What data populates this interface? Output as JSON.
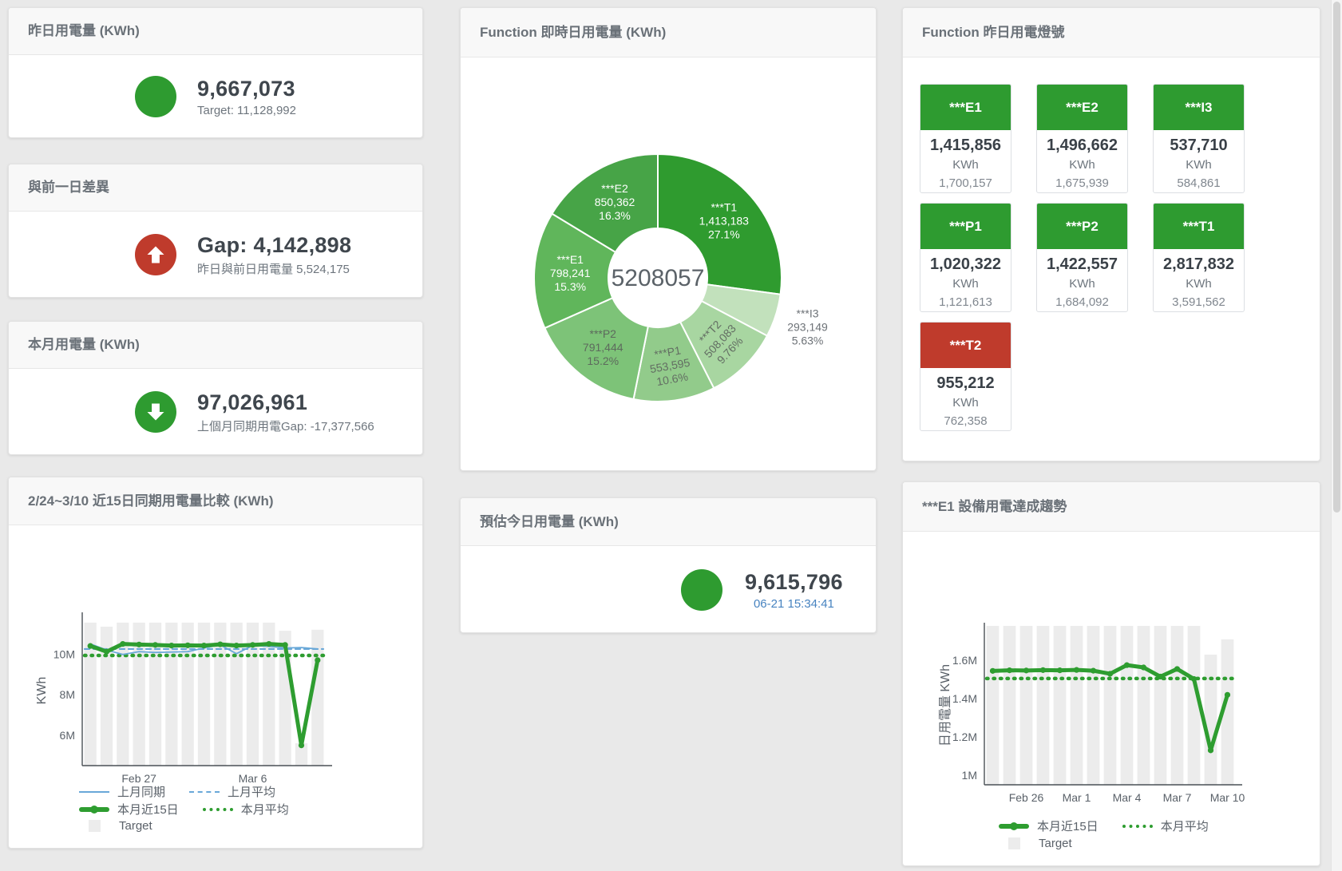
{
  "colors": {
    "green": "#2e9b30",
    "red": "#bf3b2c",
    "blue_line": "#69a8d8",
    "green_line": "#2e9d30",
    "bar_gray": "#ececec",
    "time_text": "#4783c0"
  },
  "cards": {
    "yesterday": {
      "title": "昨日用電量 (KWh)",
      "value": "9,667,073",
      "sub": "Target: 11,128,992"
    },
    "gap": {
      "title": "與前一日差異",
      "value": "Gap: 4,142,898",
      "sub": "昨日與前日用電量 5,524,175"
    },
    "month": {
      "title": "本月用電量 (KWh)",
      "value": "97,026,961",
      "sub": "上個月同期用電Gap: -17,377,566"
    },
    "forecast": {
      "title": "預估今日用電量 (KWh)",
      "value": "9,615,796",
      "timestamp": "06-21 15:34:41"
    },
    "lights": {
      "title": "Function 昨日用電燈號",
      "unit": "KWh",
      "tiles": [
        {
          "label": "***E1",
          "value": "1,415,856",
          "target": "1,700,157",
          "color": "#2e9b30"
        },
        {
          "label": "***E2",
          "value": "1,496,662",
          "target": "1,675,939",
          "color": "#2e9b30"
        },
        {
          "label": "***I3",
          "value": "537,710",
          "target": "584,861",
          "color": "#2e9b30"
        },
        {
          "label": "***P1",
          "value": "1,020,322",
          "target": "1,121,613",
          "color": "#2e9b30"
        },
        {
          "label": "***P2",
          "value": "1,422,557",
          "target": "1,684,092",
          "color": "#2e9b30"
        },
        {
          "label": "***T1",
          "value": "2,817,832",
          "target": "3,591,562",
          "color": "#2e9b30"
        },
        {
          "label": "***T2",
          "value": "955,212",
          "target": "762,358",
          "color": "#bf3b2c"
        }
      ]
    }
  },
  "chart_data": [
    {
      "id": "realtime_donut",
      "type": "pie",
      "title": "Function 即時日用電量 (KWh)",
      "center_label": "5208057",
      "slices": [
        {
          "name": "***T1",
          "value": 1413183,
          "value_label": "1,413,183",
          "pct_label": "27.1%",
          "color": "#2f9b2f",
          "label_pos": "inside",
          "label_color": "#ffffff"
        },
        {
          "name": "***I3",
          "value": 293149,
          "value_label": "293,149",
          "pct_label": "5.63%",
          "color": "#c2e1bc",
          "label_pos": "outside",
          "label_color": "#6d7277"
        },
        {
          "name": "***T2",
          "value": 508083,
          "value_label": "508,083",
          "pct_label": "9.76%",
          "color": "#a8d6a1",
          "label_pos": "inside",
          "label_color": "#636e63",
          "label_rotate": -47
        },
        {
          "name": "***P1",
          "value": 553595,
          "value_label": "553,595",
          "pct_label": "10.6%",
          "color": "#92cb8b",
          "label_pos": "inside",
          "label_color": "#636e63",
          "label_rotate": -10
        },
        {
          "name": "***P2",
          "value": 791444,
          "value_label": "791,444",
          "pct_label": "15.2%",
          "color": "#7dc378",
          "label_pos": "inside",
          "label_color": "#5d6a5d"
        },
        {
          "name": "***E1",
          "value": 798241,
          "value_label": "798,241",
          "pct_label": "15.3%",
          "color": "#60b65b",
          "label_pos": "inside",
          "label_color": "#ffffff"
        },
        {
          "name": "***E2",
          "value": 850362,
          "value_label": "850,362",
          "pct_label": "16.3%",
          "color": "#47a447",
          "label_pos": "inside",
          "label_color": "#ffffff"
        }
      ]
    },
    {
      "id": "compare15",
      "type": "line",
      "title": "2/24~3/10 近15日同期用電量比較 (KWh)",
      "ylabel": "KWh",
      "ymin": 4500000,
      "ymax": 11900000,
      "yticks": [
        {
          "v": 6000000,
          "label": "6M"
        },
        {
          "v": 8000000,
          "label": "8M"
        },
        {
          "v": 10000000,
          "label": "10M"
        }
      ],
      "xticks": [
        {
          "i": 3,
          "label": "Feb 27"
        },
        {
          "i": 10,
          "label": "Mar 6"
        }
      ],
      "target_bars": [
        11550000,
        11350000,
        11550000,
        11550000,
        11550000,
        11550000,
        11550000,
        11550000,
        11550000,
        11550000,
        11550000,
        11550000,
        11150000,
        5600000,
        11200000
      ],
      "series": [
        {
          "name": "上月平均",
          "style": "dash-blue",
          "const": 10250000
        },
        {
          "name": "本月平均",
          "style": "dot-green",
          "const": 9930000
        },
        {
          "name": "上月同期",
          "style": "line-blue",
          "values": [
            10500000,
            10200000,
            9980000,
            10120000,
            10080000,
            10100000,
            10120000,
            10300000,
            10450000,
            10020000,
            10420000,
            10380000,
            10300000,
            10320000,
            10250000
          ]
        },
        {
          "name": "本月近15日",
          "style": "line-green",
          "values": [
            10400000,
            10120000,
            10500000,
            10470000,
            10450000,
            10420000,
            10430000,
            10420000,
            10480000,
            10420000,
            10450000,
            10500000,
            10450000,
            5500000,
            9700000
          ]
        }
      ],
      "legend": [
        {
          "label": "上月同期",
          "style": "line-blue"
        },
        {
          "label": "上月平均",
          "style": "dash-blue"
        },
        {
          "label": "本月近15日",
          "style": "line-green"
        },
        {
          "label": "本月平均",
          "style": "dot-green"
        },
        {
          "label": "Target",
          "style": "sq"
        }
      ]
    },
    {
      "id": "e1_trend",
      "type": "line",
      "title": "***E1 設備用電達成趨勢",
      "ylabel": "日用電量 KWh",
      "ymin": 950000,
      "ymax": 1780000,
      "yticks": [
        {
          "v": 1000000,
          "label": "1M"
        },
        {
          "v": 1200000,
          "label": "1.2M"
        },
        {
          "v": 1400000,
          "label": "1.4M"
        },
        {
          "v": 1600000,
          "label": "1.6M"
        }
      ],
      "xticks": [
        {
          "i": 2,
          "label": "Feb 26"
        },
        {
          "i": 5,
          "label": "Mar 1"
        },
        {
          "i": 8,
          "label": "Mar 4"
        },
        {
          "i": 11,
          "label": "Mar 7"
        },
        {
          "i": 14,
          "label": "Mar 10"
        }
      ],
      "target_bars": [
        1780000,
        1780000,
        1780000,
        1780000,
        1780000,
        1780000,
        1780000,
        1780000,
        1780000,
        1780000,
        1780000,
        1780000,
        1780000,
        1630000,
        1710000
      ],
      "series": [
        {
          "name": "本月平均",
          "style": "dot-green",
          "const": 1505000
        },
        {
          "name": "本月近15日",
          "style": "line-green",
          "values": [
            1545000,
            1548000,
            1547000,
            1549000,
            1548000,
            1550000,
            1546000,
            1530000,
            1575000,
            1563000,
            1515000,
            1555000,
            1503000,
            1130000,
            1420000
          ]
        }
      ],
      "legend": [
        {
          "label": "本月近15日",
          "style": "line-green"
        },
        {
          "label": "本月平均",
          "style": "dot-green"
        },
        {
          "label": "Target",
          "style": "sq"
        }
      ]
    }
  ]
}
